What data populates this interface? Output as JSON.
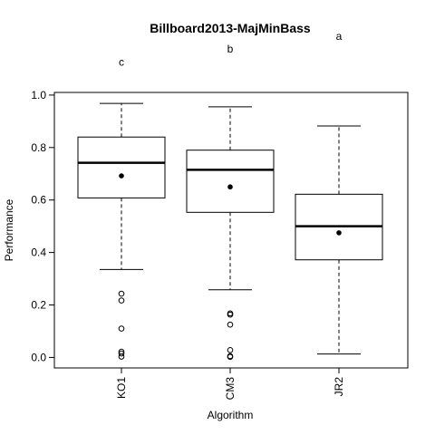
{
  "chart_data": {
    "type": "boxplot",
    "title": "Billboard2013-MajMinBass",
    "xlabel": "Algorithm",
    "ylabel": "Performance",
    "ylim": [
      -0.04,
      1.01
    ],
    "yticks": [
      "0.0",
      "0.2",
      "0.4",
      "0.6",
      "0.8",
      "1.0"
    ],
    "ytick_values": [
      0.0,
      0.2,
      0.4,
      0.6,
      0.8,
      1.0
    ],
    "grid": false,
    "legend": "none",
    "series": [
      {
        "category": "KO1",
        "whisker_low": 0.335,
        "q1": 0.608,
        "median": 0.742,
        "q3": 0.84,
        "whisker_high": 0.968,
        "mean": 0.692,
        "outliers": [
          0.243,
          0.217,
          0.11,
          0.022,
          0.015,
          0.003
        ],
        "letter": "c",
        "letter_value": 1.125
      },
      {
        "category": "CM3",
        "whisker_low": 0.258,
        "q1": 0.553,
        "median": 0.715,
        "q3": 0.79,
        "whisker_high": 0.955,
        "mean": 0.65,
        "outliers": [
          0.168,
          0.163,
          0.125,
          0.028,
          0.005,
          0.002
        ],
        "letter": "b",
        "letter_value": 1.175
      },
      {
        "category": "JR2",
        "whisker_low": 0.013,
        "q1": 0.372,
        "median": 0.5,
        "q3": 0.622,
        "whisker_high": 0.882,
        "mean": 0.475,
        "outliers": [],
        "letter": "a",
        "letter_value": 1.225
      }
    ]
  }
}
